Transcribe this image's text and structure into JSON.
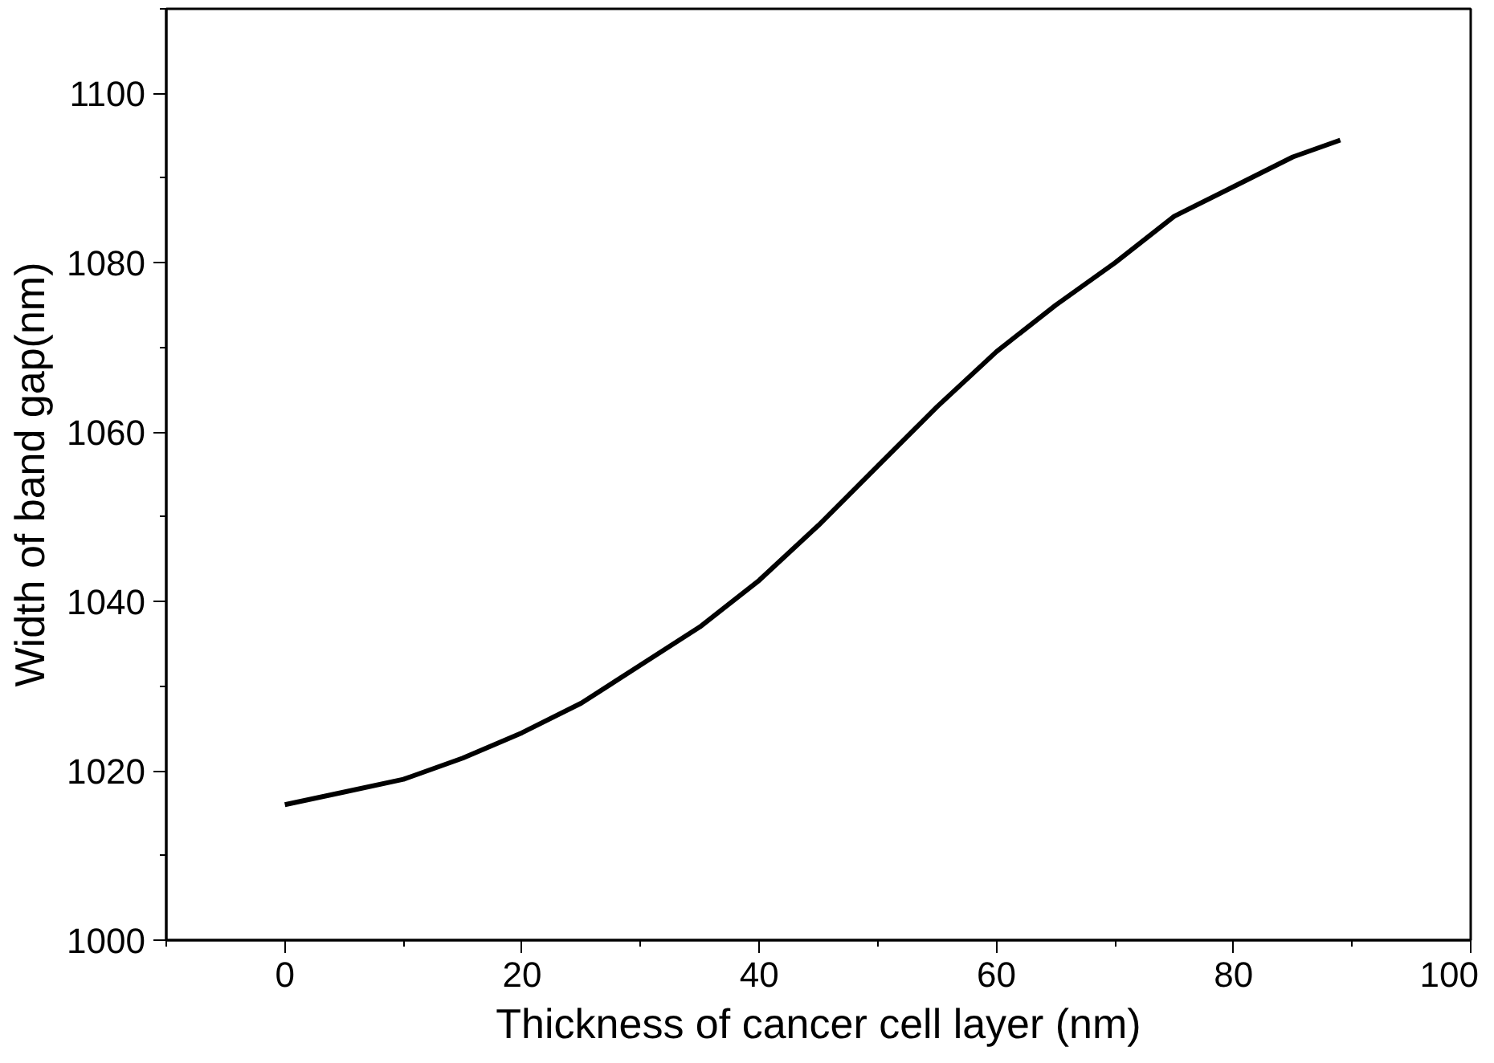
{
  "chart_data": {
    "type": "line",
    "xlabel": "Thickness of cancer cell layer (nm)",
    "ylabel": "Width of band gap(nm)",
    "x": [
      0,
      5,
      10,
      15,
      20,
      25,
      30,
      35,
      40,
      45,
      50,
      55,
      60,
      65,
      70,
      75,
      80,
      85,
      89
    ],
    "series": [
      {
        "color": "#000000",
        "values": [
          1016,
          1017.5,
          1019,
          1021.5,
          1024.5,
          1028,
          1032.5,
          1037,
          1042.5,
          1049,
          1056,
          1063,
          1069.5,
          1075,
          1080,
          1085.5,
          1089,
          1092.5,
          1094.5
        ]
      }
    ],
    "xlim": [
      -10,
      100
    ],
    "ylim": [
      1000,
      1110
    ],
    "xticks": [
      0,
      20,
      40,
      60,
      80,
      100
    ],
    "yticks": [
      1000,
      1020,
      1040,
      1060,
      1080,
      1100
    ],
    "marker": "none",
    "line_style": "solid"
  }
}
